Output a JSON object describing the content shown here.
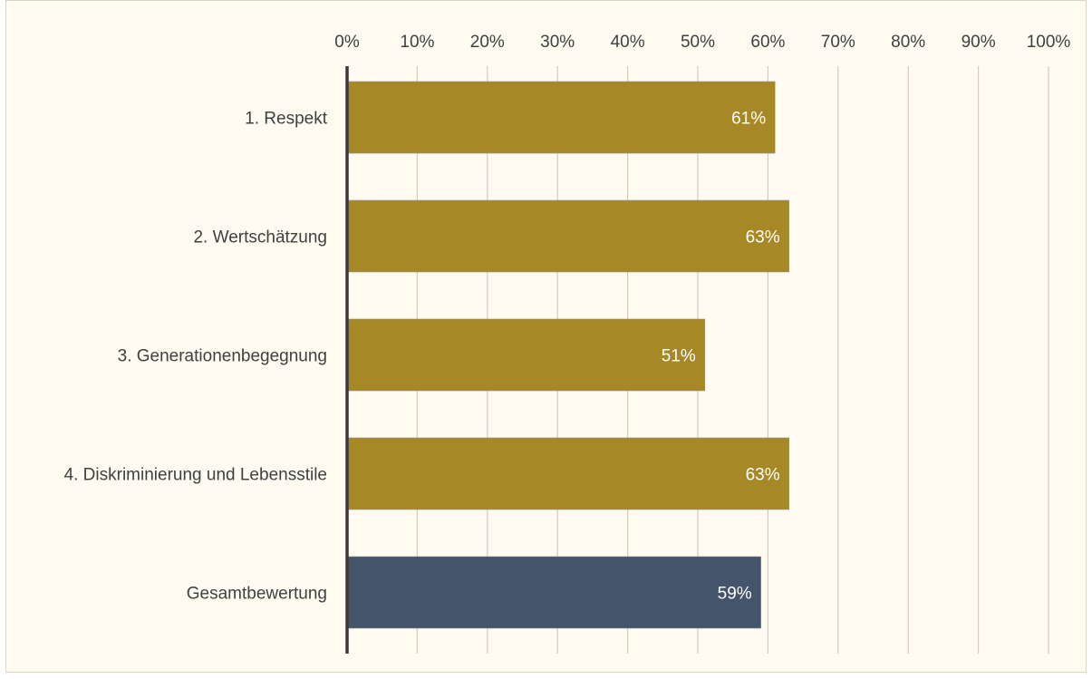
{
  "chart_data": {
    "type": "bar",
    "orientation": "horizontal",
    "title": "",
    "xlabel": "",
    "ylabel": "",
    "xlim": [
      0,
      100
    ],
    "grid": true,
    "legend": "none",
    "tick_values": [
      0,
      10,
      20,
      30,
      40,
      50,
      60,
      70,
      80,
      90,
      100
    ],
    "tick_labels": [
      "0%",
      "10%",
      "20%",
      "30%",
      "40%",
      "50%",
      "60%",
      "70%",
      "80%",
      "90%",
      "100%"
    ],
    "categories": [
      "1. Respekt",
      "2. Wertschätzung",
      "3. Generationenbegegnung",
      "4. Diskriminierung und Lebensstile",
      "Gesamtbewertung"
    ],
    "values": [
      61,
      63,
      51,
      63,
      59
    ],
    "data_labels": [
      "61%",
      "63%",
      "51%",
      "63%",
      "59%"
    ],
    "colors": [
      "#a68826",
      "#a68826",
      "#a68826",
      "#a68826",
      "#44546a"
    ]
  },
  "style": {
    "background": "#fffbf1",
    "gridline_color": "#d0ccc0",
    "axis_color": "#3a3a3a"
  }
}
